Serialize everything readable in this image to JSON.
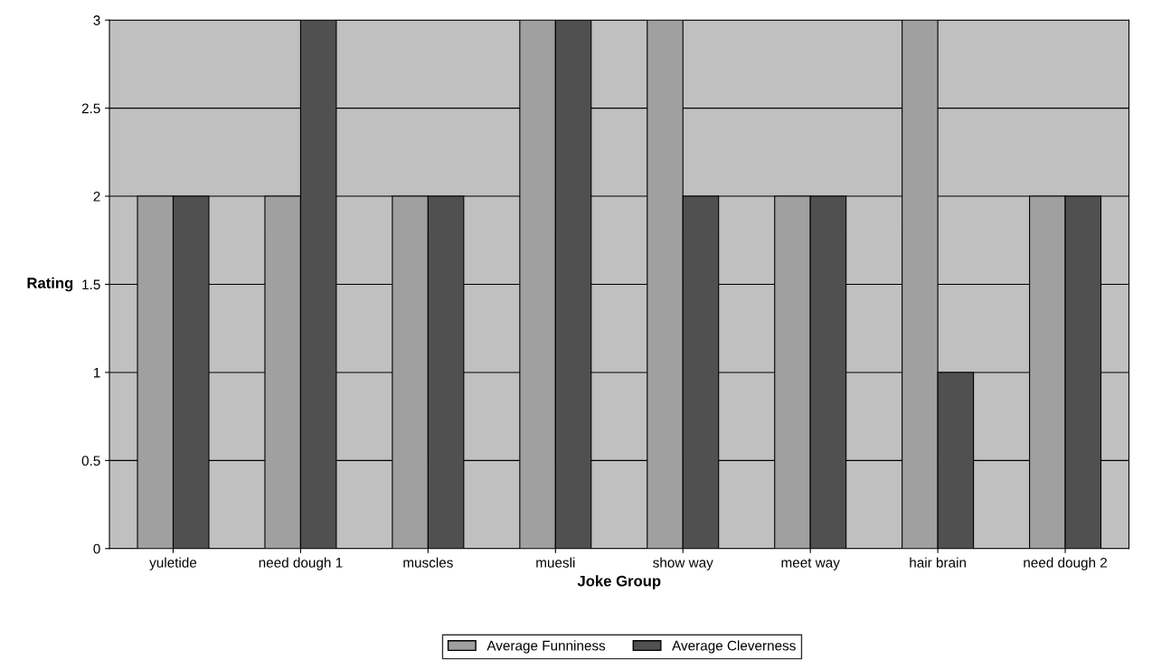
{
  "chart_data": {
    "type": "bar",
    "xlabel": "Joke Group",
    "ylabel": "Rating",
    "categories": [
      "yuletide",
      "need dough 1",
      "muscles",
      "muesli",
      "show way",
      "meet way",
      "hair brain",
      "need dough 2"
    ],
    "series": [
      {
        "name": "Average Funniness",
        "color": "#a0a0a0",
        "values": [
          2,
          2,
          2,
          3,
          3,
          2,
          3,
          2
        ]
      },
      {
        "name": "Average Cleverness",
        "color": "#505050",
        "values": [
          2,
          3,
          2,
          3,
          2,
          2,
          1,
          2
        ]
      }
    ],
    "ylim": [
      0,
      3
    ],
    "yticks": [
      0,
      0.5,
      1,
      1.5,
      2,
      2.5,
      3
    ],
    "grid": "y",
    "legend": "bottom"
  }
}
